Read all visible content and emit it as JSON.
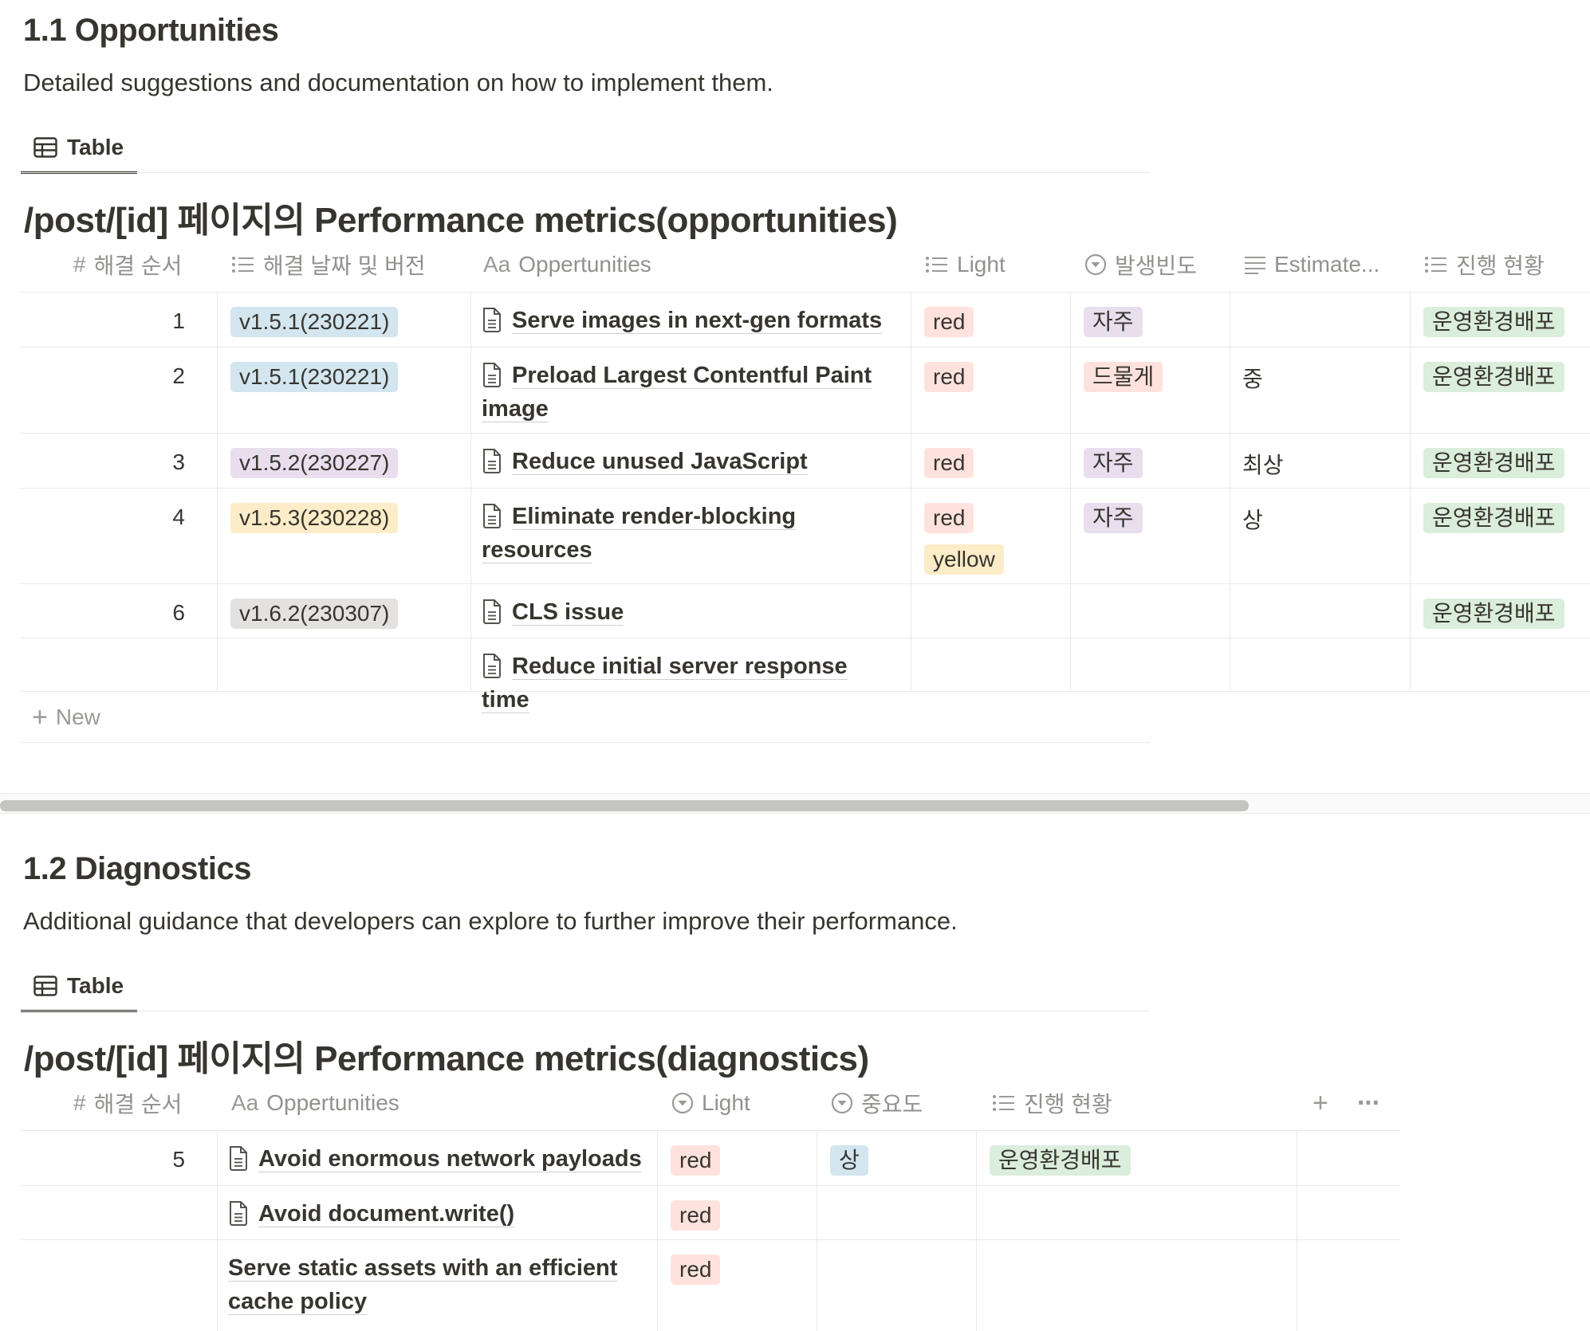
{
  "colors": {
    "text": "#37352f",
    "muted": "#91918e",
    "border": "#e9e9e7",
    "tag_blue": "#d3e5ef",
    "tag_purple": "#e8deee",
    "tag_yellow": "#fdecc8",
    "tag_gray": "#e3e2e0",
    "tag_red": "#ffe2dd",
    "tag_green": "#dbeddb"
  },
  "section1": {
    "heading": "1.1 Opportunities",
    "description": "Detailed suggestions and documentation on how to implement them.",
    "view_tab": "Table",
    "db_title": "/post/[id] 페이지의 Performance metrics(opportunities)",
    "columns": {
      "order": "해결 순서",
      "version": "해결 날짜 및 버전",
      "title_prefix": "Aa",
      "title": "Oppertunities",
      "light": "Light",
      "freq": "발생빈도",
      "estimate": "Estimate...",
      "status": "진행 현황"
    },
    "rows": [
      {
        "order": "1",
        "version": "v1.5.1(230221)",
        "title": "Serve images in next-gen formats",
        "light1": "red",
        "light2": "",
        "freq": "자주",
        "estimate": "",
        "status": "운영환경배포"
      },
      {
        "order": "2",
        "version": "v1.5.1(230221)",
        "title": "Preload Largest Contentful Paint",
        "title2": "image",
        "light1": "red",
        "light2": "",
        "freq": "드물게",
        "estimate": "중",
        "status": "운영환경배포"
      },
      {
        "order": "3",
        "version": "v1.5.2(230227)",
        "title": "Reduce unused JavaScript",
        "light1": "red",
        "light2": "",
        "freq": "자주",
        "estimate": "최상",
        "status": "운영환경배포"
      },
      {
        "order": "4",
        "version": "v1.5.3(230228)",
        "title": "Eliminate render-blocking",
        "title2": "resources",
        "light1": "red",
        "light2": "yellow",
        "freq": "자주",
        "estimate": "상",
        "status": "운영환경배포"
      },
      {
        "order": "6",
        "version": "v1.6.2(230307)",
        "title": "CLS issue",
        "light1": "",
        "light2": "",
        "freq": "",
        "estimate": "",
        "status": "운영환경배포"
      },
      {
        "order": "",
        "version": "",
        "title": "Reduce initial server response time",
        "light1": "",
        "light2": "",
        "freq": "",
        "estimate": "",
        "status": ""
      }
    ],
    "new_label": "New"
  },
  "section2": {
    "heading": "1.2 Diagnostics",
    "description": "Additional guidance that developers can explore to further improve their performance.",
    "view_tab": "Table",
    "db_title": "/post/[id] 페이지의 Performance metrics(diagnostics)",
    "columns": {
      "order": "해결 순서",
      "title_prefix": "Aa",
      "title": "Oppertunities",
      "light": "Light",
      "importance": "중요도",
      "status": "진행 현황"
    },
    "rows": [
      {
        "order": "5",
        "title": "Avoid enormous network payloads",
        "light": "red",
        "importance": "상",
        "status": "운영환경배포"
      },
      {
        "order": "",
        "title": "Avoid document.write()",
        "light": "red",
        "importance": "",
        "status": ""
      },
      {
        "order": "",
        "title": "Serve static assets with an efficient",
        "title2": "cache policy",
        "light": "red",
        "importance": "",
        "status": ""
      }
    ]
  }
}
